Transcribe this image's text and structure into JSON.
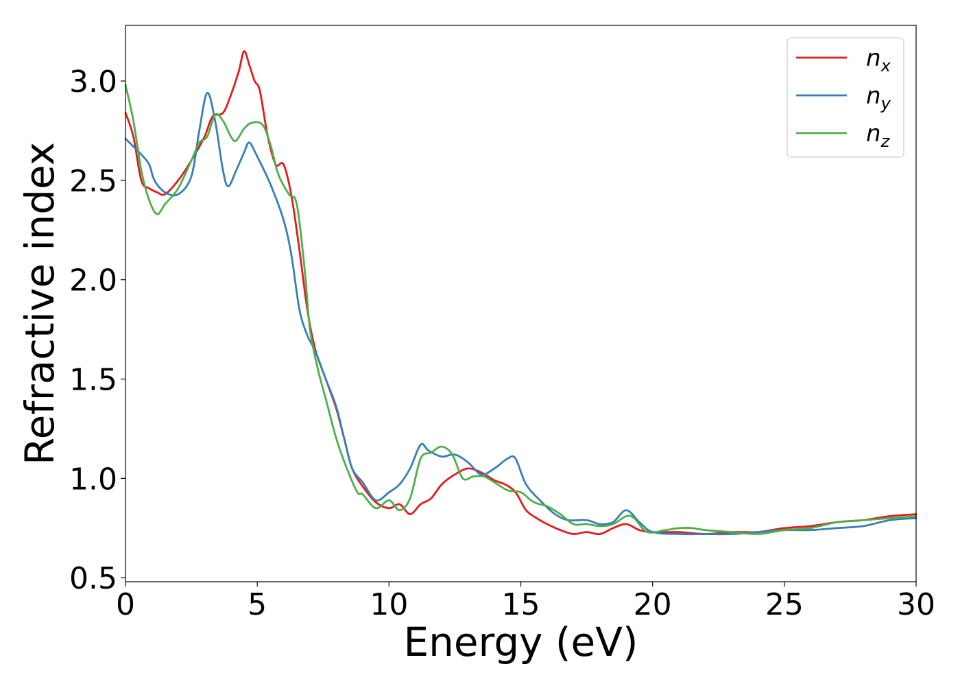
{
  "chart_data": {
    "type": "line",
    "xlabel": "Energy (eV)",
    "ylabel": "Refractive index",
    "xlim": [
      0,
      30
    ],
    "ylim": [
      0.48,
      3.28
    ],
    "x_ticks": [
      0,
      5,
      10,
      15,
      20,
      25,
      30
    ],
    "y_ticks": [
      0.5,
      1.0,
      1.5,
      2.0,
      2.5,
      3.0
    ],
    "x_tick_labels": [
      "0",
      "5",
      "10",
      "15",
      "20",
      "25",
      "30"
    ],
    "y_tick_labels": [
      "0.5",
      "1.0",
      "1.5",
      "2.0",
      "2.5",
      "3.0"
    ],
    "grid": false,
    "legend_position": "top-right",
    "series": [
      {
        "name": "n_x",
        "label_base": "n",
        "label_sub": "x",
        "color": "#e41a1c",
        "points": [
          [
            0,
            2.84
          ],
          [
            0.3,
            2.72
          ],
          [
            0.6,
            2.5
          ],
          [
            0.9,
            2.46
          ],
          [
            1.2,
            2.44
          ],
          [
            1.5,
            2.43
          ],
          [
            2.0,
            2.5
          ],
          [
            2.5,
            2.6
          ],
          [
            3.0,
            2.72
          ],
          [
            3.3,
            2.82
          ],
          [
            3.7,
            2.84
          ],
          [
            4.0,
            2.93
          ],
          [
            4.3,
            3.05
          ],
          [
            4.5,
            3.15
          ],
          [
            4.7,
            3.08
          ],
          [
            4.9,
            3.0
          ],
          [
            5.1,
            2.95
          ],
          [
            5.4,
            2.72
          ],
          [
            5.7,
            2.58
          ],
          [
            6.0,
            2.58
          ],
          [
            6.3,
            2.42
          ],
          [
            6.6,
            2.15
          ],
          [
            6.9,
            1.85
          ],
          [
            7.2,
            1.65
          ],
          [
            7.6,
            1.5
          ],
          [
            8.0,
            1.35
          ],
          [
            8.3,
            1.2
          ],
          [
            8.6,
            1.05
          ],
          [
            9.0,
            0.96
          ],
          [
            9.5,
            0.88
          ],
          [
            10.0,
            0.85
          ],
          [
            10.4,
            0.87
          ],
          [
            10.8,
            0.82
          ],
          [
            11.2,
            0.87
          ],
          [
            11.6,
            0.9
          ],
          [
            12.0,
            0.97
          ],
          [
            12.5,
            1.02
          ],
          [
            13.0,
            1.05
          ],
          [
            13.5,
            1.03
          ],
          [
            14.0,
            0.99
          ],
          [
            14.4,
            0.97
          ],
          [
            14.8,
            0.93
          ],
          [
            15.2,
            0.84
          ],
          [
            15.6,
            0.8
          ],
          [
            16.0,
            0.77
          ],
          [
            16.5,
            0.74
          ],
          [
            17.0,
            0.72
          ],
          [
            17.5,
            0.73
          ],
          [
            18.0,
            0.72
          ],
          [
            18.5,
            0.75
          ],
          [
            19.0,
            0.77
          ],
          [
            19.5,
            0.74
          ],
          [
            20.0,
            0.73
          ],
          [
            21.0,
            0.73
          ],
          [
            22.0,
            0.72
          ],
          [
            23.0,
            0.73
          ],
          [
            24.0,
            0.73
          ],
          [
            25.0,
            0.75
          ],
          [
            26.0,
            0.76
          ],
          [
            27.0,
            0.78
          ],
          [
            28.0,
            0.79
          ],
          [
            29.0,
            0.81
          ],
          [
            30.0,
            0.82
          ]
        ]
      },
      {
        "name": "n_y",
        "label_base": "n",
        "label_sub": "y",
        "color": "#377eb8",
        "points": [
          [
            0,
            2.71
          ],
          [
            0.3,
            2.67
          ],
          [
            0.6,
            2.63
          ],
          [
            0.9,
            2.58
          ],
          [
            1.1,
            2.5
          ],
          [
            1.5,
            2.44
          ],
          [
            2.0,
            2.43
          ],
          [
            2.5,
            2.52
          ],
          [
            2.8,
            2.75
          ],
          [
            3.1,
            2.94
          ],
          [
            3.4,
            2.8
          ],
          [
            3.7,
            2.55
          ],
          [
            3.9,
            2.47
          ],
          [
            4.2,
            2.55
          ],
          [
            4.5,
            2.64
          ],
          [
            4.7,
            2.69
          ],
          [
            5.0,
            2.62
          ],
          [
            5.5,
            2.48
          ],
          [
            6.0,
            2.3
          ],
          [
            6.3,
            2.12
          ],
          [
            6.6,
            1.85
          ],
          [
            6.9,
            1.72
          ],
          [
            7.2,
            1.64
          ],
          [
            7.6,
            1.5
          ],
          [
            8.0,
            1.36
          ],
          [
            8.3,
            1.2
          ],
          [
            8.6,
            1.05
          ],
          [
            9.0,
            0.98
          ],
          [
            9.5,
            0.89
          ],
          [
            10.0,
            0.93
          ],
          [
            10.4,
            0.97
          ],
          [
            10.8,
            1.05
          ],
          [
            11.2,
            1.17
          ],
          [
            11.5,
            1.14
          ],
          [
            12.0,
            1.11
          ],
          [
            12.5,
            1.12
          ],
          [
            13.0,
            1.08
          ],
          [
            13.5,
            1.02
          ],
          [
            14.0,
            1.05
          ],
          [
            14.5,
            1.1
          ],
          [
            14.8,
            1.1
          ],
          [
            15.2,
            0.97
          ],
          [
            15.8,
            0.88
          ],
          [
            16.3,
            0.82
          ],
          [
            16.8,
            0.79
          ],
          [
            17.5,
            0.79
          ],
          [
            18.0,
            0.77
          ],
          [
            18.5,
            0.78
          ],
          [
            19.0,
            0.84
          ],
          [
            19.5,
            0.78
          ],
          [
            20.0,
            0.73
          ],
          [
            21.0,
            0.72
          ],
          [
            22.0,
            0.72
          ],
          [
            23.0,
            0.72
          ],
          [
            24.0,
            0.73
          ],
          [
            25.0,
            0.74
          ],
          [
            26.0,
            0.74
          ],
          [
            27.0,
            0.75
          ],
          [
            28.0,
            0.76
          ],
          [
            29.0,
            0.79
          ],
          [
            30.0,
            0.8
          ]
        ]
      },
      {
        "name": "n_z",
        "label_base": "n",
        "label_sub": "z",
        "color": "#4daf4a",
        "points": [
          [
            0,
            2.98
          ],
          [
            0.3,
            2.8
          ],
          [
            0.6,
            2.55
          ],
          [
            0.9,
            2.4
          ],
          [
            1.2,
            2.33
          ],
          [
            1.5,
            2.38
          ],
          [
            2.0,
            2.46
          ],
          [
            2.5,
            2.6
          ],
          [
            2.8,
            2.69
          ],
          [
            3.1,
            2.72
          ],
          [
            3.4,
            2.83
          ],
          [
            3.7,
            2.8
          ],
          [
            4.0,
            2.72
          ],
          [
            4.2,
            2.7
          ],
          [
            4.5,
            2.76
          ],
          [
            4.8,
            2.79
          ],
          [
            5.2,
            2.78
          ],
          [
            5.5,
            2.68
          ],
          [
            5.8,
            2.53
          ],
          [
            6.2,
            2.43
          ],
          [
            6.5,
            2.38
          ],
          [
            6.8,
            2.05
          ],
          [
            7.0,
            1.75
          ],
          [
            7.3,
            1.55
          ],
          [
            7.6,
            1.4
          ],
          [
            8.0,
            1.2
          ],
          [
            8.4,
            1.05
          ],
          [
            8.8,
            0.93
          ],
          [
            9.0,
            0.92
          ],
          [
            9.5,
            0.85
          ],
          [
            10.0,
            0.89
          ],
          [
            10.4,
            0.84
          ],
          [
            10.8,
            0.9
          ],
          [
            11.2,
            1.1
          ],
          [
            11.6,
            1.13
          ],
          [
            12.0,
            1.16
          ],
          [
            12.4,
            1.12
          ],
          [
            12.8,
            1.0
          ],
          [
            13.2,
            1.01
          ],
          [
            13.6,
            1.01
          ],
          [
            14.0,
            0.98
          ],
          [
            14.5,
            0.94
          ],
          [
            15.0,
            0.93
          ],
          [
            15.5,
            0.88
          ],
          [
            16.0,
            0.86
          ],
          [
            16.5,
            0.82
          ],
          [
            17.0,
            0.77
          ],
          [
            17.5,
            0.77
          ],
          [
            18.0,
            0.76
          ],
          [
            18.5,
            0.77
          ],
          [
            19.0,
            0.81
          ],
          [
            19.3,
            0.8
          ],
          [
            19.8,
            0.73
          ],
          [
            20.5,
            0.74
          ],
          [
            21.0,
            0.75
          ],
          [
            21.5,
            0.75
          ],
          [
            22.0,
            0.74
          ],
          [
            23.0,
            0.73
          ],
          [
            24.0,
            0.72
          ],
          [
            25.0,
            0.74
          ],
          [
            26.0,
            0.75
          ],
          [
            27.0,
            0.78
          ],
          [
            28.0,
            0.79
          ],
          [
            29.0,
            0.8
          ],
          [
            30.0,
            0.81
          ]
        ]
      }
    ]
  }
}
